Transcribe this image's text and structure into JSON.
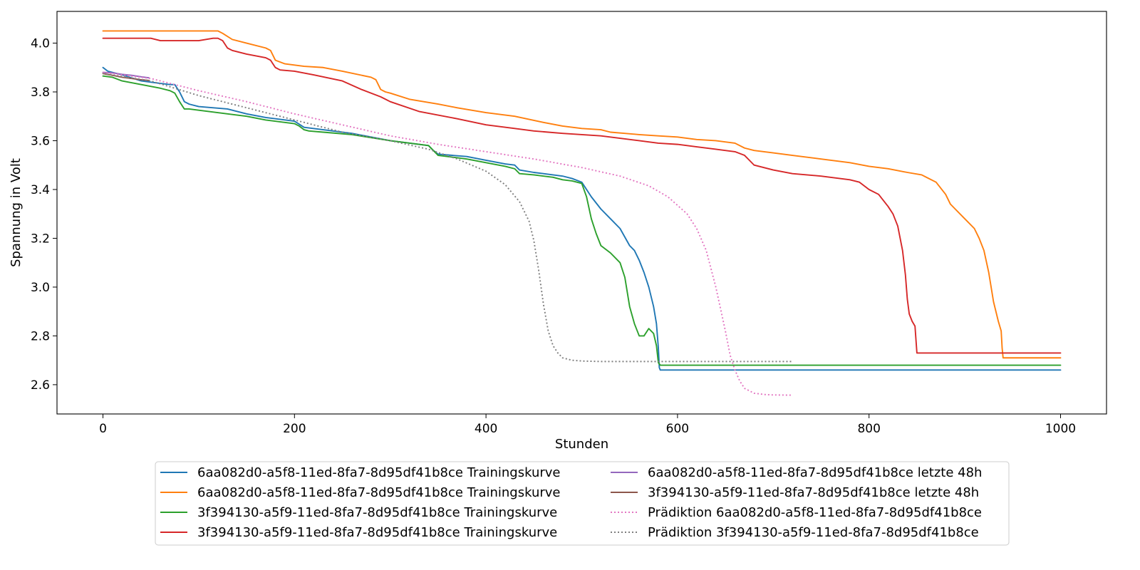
{
  "chart_data": {
    "type": "line",
    "xlabel": "Stunden",
    "ylabel": "Spannung in Volt",
    "xlim": [
      -48,
      1048
    ],
    "ylim": [
      2.48,
      4.13
    ],
    "xticks": [
      0,
      200,
      400,
      600,
      800,
      1000
    ],
    "yticks": [
      2.6,
      2.8,
      3.0,
      3.2,
      3.4,
      3.6,
      3.8,
      4.0
    ],
    "xtick_labels": [
      "0",
      "200",
      "400",
      "600",
      "800",
      "1000"
    ],
    "ytick_labels": [
      "2.6",
      "2.8",
      "3.0",
      "3.2",
      "3.4",
      "3.6",
      "3.8",
      "4.0"
    ],
    "grid": false,
    "legend_position": "bottom-center",
    "series": [
      {
        "name": "6aa082d0-a5f8-11ed-8fa7-8d95df41b8ce Trainingskurve",
        "color": "#1f77b4",
        "style": "solid",
        "x": [
          0,
          5,
          20,
          40,
          60,
          70,
          75,
          80,
          85,
          90,
          100,
          130,
          150,
          170,
          200,
          210,
          230,
          260,
          300,
          330,
          340,
          345,
          350,
          380,
          400,
          420,
          430,
          435,
          450,
          460,
          470,
          480,
          490,
          500,
          510,
          520,
          530,
          540,
          550,
          555,
          560,
          565,
          570,
          575,
          578,
          580,
          581,
          582,
          600,
          700,
          800,
          900,
          1000
        ],
        "y": [
          3.9,
          3.885,
          3.87,
          3.845,
          3.835,
          3.83,
          3.83,
          3.8,
          3.76,
          3.75,
          3.74,
          3.73,
          3.71,
          3.695,
          3.68,
          3.655,
          3.645,
          3.63,
          3.6,
          3.585,
          3.58,
          3.56,
          3.545,
          3.535,
          3.52,
          3.505,
          3.5,
          3.48,
          3.47,
          3.465,
          3.46,
          3.455,
          3.445,
          3.43,
          3.37,
          3.32,
          3.28,
          3.24,
          3.17,
          3.15,
          3.11,
          3.06,
          3.0,
          2.92,
          2.85,
          2.75,
          2.67,
          2.66,
          2.66,
          2.66,
          2.66,
          2.66,
          2.66
        ]
      },
      {
        "name": "6aa082d0-a5f8-11ed-8fa7-8d95df41b8ce Trainingskurve",
        "color": "#ff7f0e",
        "style": "solid",
        "x": [
          0,
          50,
          100,
          120,
          125,
          135,
          150,
          170,
          175,
          180,
          190,
          200,
          210,
          230,
          250,
          280,
          285,
          290,
          295,
          300,
          320,
          350,
          370,
          400,
          430,
          460,
          480,
          500,
          520,
          530,
          545,
          560,
          580,
          600,
          620,
          640,
          660,
          670,
          680,
          700,
          720,
          750,
          780,
          800,
          820,
          840,
          855,
          860,
          870,
          880,
          885,
          890,
          900,
          910,
          915,
          920,
          925,
          930,
          935,
          938,
          939,
          940,
          960,
          1000
        ],
        "y": [
          4.05,
          4.05,
          4.05,
          4.05,
          4.04,
          4.015,
          4.0,
          3.98,
          3.97,
          3.93,
          3.915,
          3.91,
          3.905,
          3.9,
          3.885,
          3.86,
          3.85,
          3.81,
          3.8,
          3.795,
          3.77,
          3.75,
          3.735,
          3.715,
          3.7,
          3.675,
          3.66,
          3.65,
          3.645,
          3.635,
          3.63,
          3.625,
          3.62,
          3.615,
          3.605,
          3.6,
          3.59,
          3.57,
          3.56,
          3.55,
          3.54,
          3.525,
          3.51,
          3.495,
          3.485,
          3.47,
          3.46,
          3.45,
          3.43,
          3.38,
          3.34,
          3.32,
          3.28,
          3.24,
          3.2,
          3.15,
          3.06,
          2.94,
          2.86,
          2.82,
          2.75,
          2.71,
          2.71,
          2.71
        ]
      },
      {
        "name": "3f394130-a5f9-11ed-8fa7-8d95df41b8ce Trainingskurve",
        "color": "#2ca02c",
        "style": "solid",
        "x": [
          0,
          10,
          20,
          40,
          60,
          70,
          75,
          80,
          85,
          90,
          100,
          130,
          150,
          170,
          200,
          205,
          210,
          215,
          230,
          260,
          300,
          330,
          340,
          345,
          350,
          380,
          400,
          420,
          430,
          435,
          450,
          470,
          480,
          490,
          500,
          505,
          510,
          515,
          520,
          530,
          540,
          545,
          550,
          555,
          560,
          565,
          570,
          575,
          578,
          580,
          582,
          600,
          700,
          800,
          900,
          1000
        ],
        "y": [
          3.865,
          3.86,
          3.845,
          3.83,
          3.815,
          3.805,
          3.795,
          3.76,
          3.73,
          3.73,
          3.725,
          3.71,
          3.7,
          3.685,
          3.67,
          3.66,
          3.645,
          3.64,
          3.635,
          3.625,
          3.6,
          3.585,
          3.58,
          3.56,
          3.54,
          3.525,
          3.51,
          3.495,
          3.485,
          3.465,
          3.46,
          3.45,
          3.44,
          3.435,
          3.425,
          3.37,
          3.28,
          3.22,
          3.17,
          3.14,
          3.1,
          3.04,
          2.92,
          2.85,
          2.8,
          2.8,
          2.83,
          2.81,
          2.76,
          2.69,
          2.68,
          2.68,
          2.68,
          2.68,
          2.68,
          2.68
        ]
      },
      {
        "name": "3f394130-a5f9-11ed-8fa7-8d95df41b8ce Trainingskurve",
        "color": "#d62728",
        "style": "solid",
        "x": [
          0,
          50,
          60,
          80,
          100,
          115,
          120,
          125,
          130,
          135,
          150,
          170,
          175,
          180,
          185,
          200,
          220,
          250,
          270,
          290,
          295,
          300,
          330,
          370,
          400,
          430,
          450,
          480,
          500,
          520,
          540,
          560,
          580,
          600,
          620,
          640,
          660,
          670,
          675,
          680,
          700,
          720,
          750,
          780,
          790,
          800,
          810,
          820,
          825,
          830,
          835,
          838,
          840,
          842,
          845,
          848,
          850,
          855,
          900,
          1000
        ],
        "y": [
          4.02,
          4.02,
          4.01,
          4.01,
          4.01,
          4.02,
          4.02,
          4.01,
          3.98,
          3.97,
          3.955,
          3.94,
          3.93,
          3.9,
          3.89,
          3.885,
          3.87,
          3.845,
          3.81,
          3.78,
          3.77,
          3.76,
          3.72,
          3.69,
          3.665,
          3.65,
          3.64,
          3.63,
          3.625,
          3.62,
          3.61,
          3.6,
          3.59,
          3.585,
          3.575,
          3.565,
          3.555,
          3.54,
          3.52,
          3.5,
          3.48,
          3.465,
          3.455,
          3.44,
          3.43,
          3.4,
          3.38,
          3.33,
          3.3,
          3.25,
          3.15,
          3.05,
          2.95,
          2.89,
          2.86,
          2.84,
          2.73,
          2.73,
          2.73,
          2.73
        ]
      },
      {
        "name": "6aa082d0-a5f8-11ed-8fa7-8d95df41b8ce letzte 48h",
        "color": "#9467bd",
        "style": "solid",
        "x": [
          0,
          10,
          20,
          30,
          40,
          48
        ],
        "y": [
          3.88,
          3.878,
          3.872,
          3.868,
          3.862,
          3.858
        ]
      },
      {
        "name": "3f394130-a5f9-11ed-8fa7-8d95df41b8ce letzte 48h",
        "color": "#8c564b",
        "style": "solid",
        "x": [
          0,
          10,
          20,
          30,
          40,
          48
        ],
        "y": [
          3.875,
          3.868,
          3.86,
          3.855,
          3.85,
          3.847
        ]
      },
      {
        "name": "Prädiktion 6aa082d0-a5f8-11ed-8fa7-8d95df41b8ce",
        "color": "#e377c2",
        "style": "dotted",
        "x": [
          0,
          50,
          100,
          150,
          200,
          250,
          300,
          350,
          400,
          450,
          500,
          540,
          570,
          590,
          610,
          620,
          630,
          640,
          650,
          655,
          660,
          665,
          670,
          680,
          690,
          700,
          720
        ],
        "y": [
          3.88,
          3.855,
          3.805,
          3.76,
          3.71,
          3.665,
          3.62,
          3.585,
          3.555,
          3.525,
          3.49,
          3.455,
          3.415,
          3.37,
          3.3,
          3.24,
          3.15,
          3.0,
          2.82,
          2.72,
          2.66,
          2.615,
          2.585,
          2.565,
          2.56,
          2.558,
          2.557
        ]
      },
      {
        "name": "Prädiktion 3f394130-a5f9-11ed-8fa7-8d95df41b8ce",
        "color": "#7f7f7f",
        "style": "dotted",
        "x": [
          0,
          50,
          100,
          150,
          200,
          250,
          300,
          340,
          370,
          400,
          420,
          435,
          445,
          450,
          455,
          460,
          465,
          470,
          475,
          480,
          490,
          500,
          520,
          600,
          720
        ],
        "y": [
          3.875,
          3.845,
          3.785,
          3.735,
          3.685,
          3.635,
          3.6,
          3.565,
          3.525,
          3.475,
          3.42,
          3.35,
          3.27,
          3.19,
          3.07,
          2.93,
          2.82,
          2.76,
          2.73,
          2.71,
          2.7,
          2.697,
          2.695,
          2.695,
          2.695
        ]
      }
    ]
  }
}
